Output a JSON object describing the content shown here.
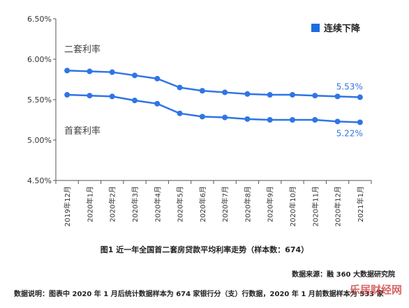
{
  "chart_data": {
    "type": "line",
    "categories": [
      "2019年12月",
      "2020年1月",
      "2020年2月",
      "2020年3月",
      "2020年4月",
      "2020年5月",
      "2020年6月",
      "2020年7月",
      "2020年8月",
      "2020年9月",
      "2020年10月",
      "2020年11月",
      "2020年12月",
      "2021年1月"
    ],
    "series": [
      {
        "name": "二套利率",
        "values": [
          5.86,
          5.85,
          5.84,
          5.8,
          5.76,
          5.65,
          5.61,
          5.59,
          5.57,
          5.56,
          5.56,
          5.55,
          5.54,
          5.53
        ],
        "color": "#2f75e6"
      },
      {
        "name": "首套利率",
        "values": [
          5.56,
          5.55,
          5.54,
          5.49,
          5.45,
          5.33,
          5.29,
          5.28,
          5.26,
          5.25,
          5.25,
          5.25,
          5.23,
          5.22
        ],
        "color": "#2f75e6"
      }
    ],
    "end_labels": [
      "5.53%",
      "5.22%"
    ],
    "ylim": [
      4.5,
      6.5
    ],
    "yticks": [
      "4.50%",
      "5.00%",
      "5.50%",
      "6.00%",
      "6.50%"
    ],
    "legend": {
      "label": "连续下降",
      "color": "#1a6ee0",
      "placement": "top-right"
    },
    "grid": false,
    "title": "图1 近一年全国首二套房贷款平均利率走势（样本数：674）"
  },
  "source": "数据来源：融 360 大数据研究院",
  "note": "数据说明：图表中 2020 年 1 月后统计数据样本为 674 家银行分（支）行数据，2020 年 1 月前数据样本为 533 家",
  "watermark": "乐居财经网"
}
